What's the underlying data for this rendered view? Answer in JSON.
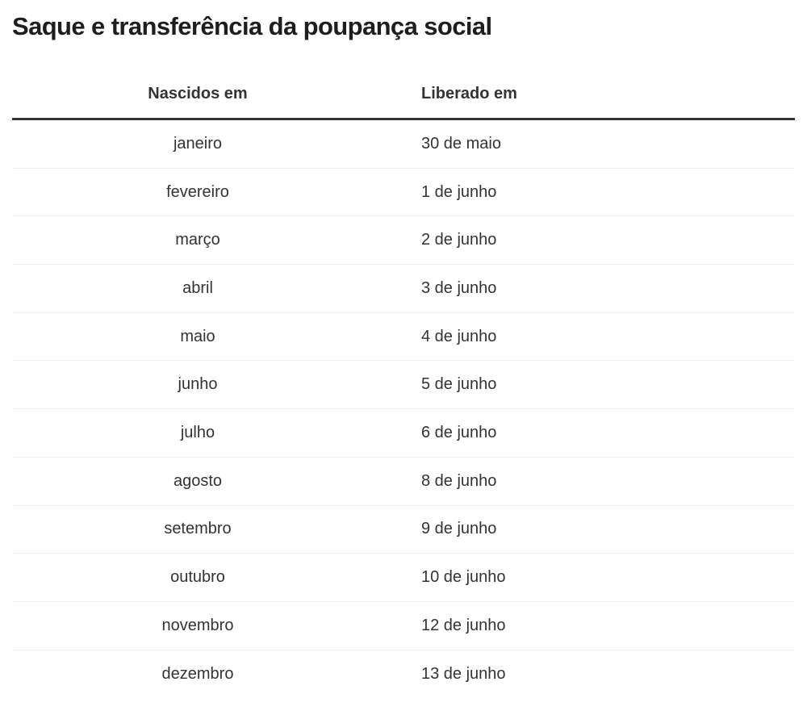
{
  "title": "Saque e transferência da poupança social",
  "table": {
    "header": {
      "col1": "Nascidos em",
      "col2": "Liberado em"
    },
    "rows": [
      {
        "month": "janeiro",
        "date": "30 de maio"
      },
      {
        "month": "fevereiro",
        "date": "1 de junho"
      },
      {
        "month": "março",
        "date": "2 de junho"
      },
      {
        "month": "abril",
        "date": "3 de junho"
      },
      {
        "month": "maio",
        "date": "4 de junho"
      },
      {
        "month": "junho",
        "date": "5 de junho"
      },
      {
        "month": "julho",
        "date": "6 de junho"
      },
      {
        "month": "agosto",
        "date": "8 de junho"
      },
      {
        "month": "setembro",
        "date": "9 de junho"
      },
      {
        "month": "outubro",
        "date": "10 de junho"
      },
      {
        "month": "novembro",
        "date": "12 de junho"
      },
      {
        "month": "dezembro",
        "date": "13 de junho"
      }
    ]
  },
  "colors": {
    "background": "#ffffff",
    "title_text": "#1e1e1e",
    "body_text": "#333333",
    "header_rule": "#333333",
    "row_divider": "#ececec"
  },
  "chart_data": {
    "type": "table",
    "title": "Saque e transferência da poupança social",
    "columns": [
      "Nascidos em",
      "Liberado em"
    ],
    "rows": [
      [
        "janeiro",
        "30 de maio"
      ],
      [
        "fevereiro",
        "1 de junho"
      ],
      [
        "março",
        "2 de junho"
      ],
      [
        "abril",
        "3 de junho"
      ],
      [
        "maio",
        "4 de junho"
      ],
      [
        "junho",
        "5 de junho"
      ],
      [
        "julho",
        "6 de junho"
      ],
      [
        "agosto",
        "8 de junho"
      ],
      [
        "setembro",
        "9 de junho"
      ],
      [
        "outubro",
        "10 de junho"
      ],
      [
        "novembro",
        "12 de junho"
      ],
      [
        "dezembro",
        "13 de junho"
      ]
    ],
    "layout": {
      "col1_align": "center",
      "col2_align": "left",
      "grid": "horizontal-dividers",
      "header_rule": "thick-dark"
    }
  }
}
